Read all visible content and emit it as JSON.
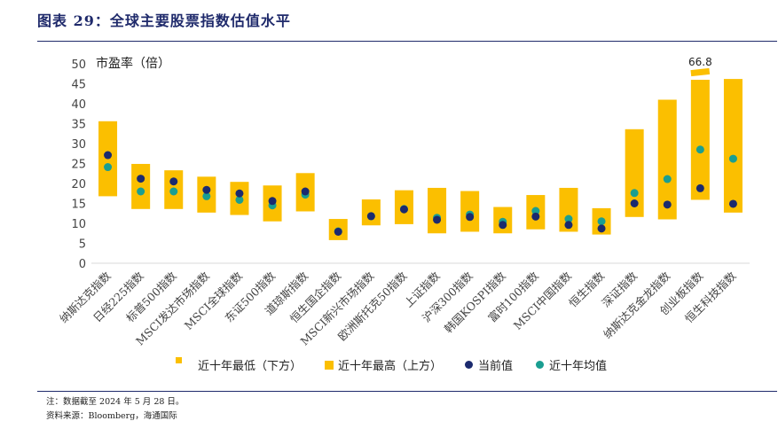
{
  "header": {
    "title": "图表 29：全球主要股票指数估值水平"
  },
  "notes": {
    "note": "注：数据截至 2024 年 5 月 28 日。",
    "source": "资料来源：Bloomberg，海通国际"
  },
  "legend": {
    "low": "近十年最低（下方）",
    "high": "近十年最高（上方）",
    "current": "当前值",
    "mean": "近十年均值"
  },
  "colors": {
    "bar": "#fbbf00",
    "current": "#1b2a6e",
    "mean": "#1a9e91",
    "axis": "#d9d9d9"
  },
  "chart_data": {
    "type": "bar",
    "title": "图表 29：全球主要股票指数估值水平",
    "ylabel": "市盈率（倍）",
    "ylim": [
      0,
      50
    ],
    "yticks": [
      0,
      5,
      10,
      15,
      20,
      25,
      30,
      35,
      40,
      45,
      50
    ],
    "categories": [
      "纳斯达克指数",
      "日经225指数",
      "标普500指数",
      "MSCI发达市场指数",
      "MSCI全球指数",
      "东证500指数",
      "道琼斯指数",
      "恒生国企指数",
      "MSCI新兴市场指数",
      "欧洲斯托克50指数",
      "上证指数",
      "沪深300指数",
      "韩国KOSPI指数",
      "富时100指数",
      "MSCI中国指数",
      "恒生指数",
      "深证指数",
      "纳斯达克金龙指数",
      "创业板指数",
      "恒生科技指数"
    ],
    "series": [
      {
        "name": "近十年最低（下方）",
        "values": [
          16.8,
          13.6,
          13.6,
          12.7,
          12.1,
          10.5,
          13.0,
          5.8,
          9.5,
          9.8,
          7.5,
          7.9,
          7.5,
          8.5,
          7.9,
          7.2,
          11.6,
          11.0,
          15.9,
          12.7
        ]
      },
      {
        "name": "近十年最高（上方）",
        "values": [
          35.6,
          24.9,
          23.3,
          21.7,
          20.4,
          19.5,
          22.6,
          11.1,
          16.0,
          18.3,
          18.9,
          18.1,
          14.1,
          17.1,
          18.9,
          13.8,
          33.6,
          41.0,
          66.8,
          46.2
        ]
      },
      {
        "name": "当前值",
        "values": [
          27.1,
          21.2,
          20.5,
          18.4,
          17.5,
          15.6,
          18.0,
          7.9,
          11.8,
          13.5,
          10.9,
          11.6,
          9.6,
          11.7,
          9.6,
          8.7,
          15.0,
          14.7,
          18.8,
          14.9
        ]
      },
      {
        "name": "近十年均值",
        "values": [
          24.1,
          18.0,
          18.0,
          16.8,
          15.9,
          14.5,
          17.2,
          8.0,
          11.8,
          13.6,
          11.4,
          12.2,
          10.4,
          13.1,
          11.1,
          10.5,
          17.6,
          21.1,
          28.5,
          26.2
        ]
      }
    ],
    "annotations": [
      {
        "label": "66.8",
        "category": "创业板指数"
      }
    ],
    "axis_break": {
      "category": "创业板指数",
      "display_top": 46.0
    }
  }
}
